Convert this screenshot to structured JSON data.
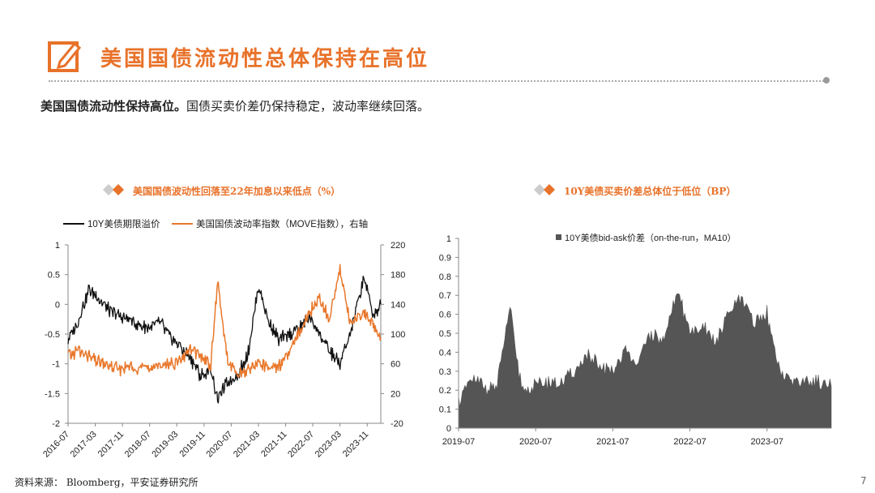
{
  "header": {
    "title": "美国国债流动性总体保持在高位",
    "icon": "edit-icon",
    "accent_color": "#e8722a"
  },
  "summary": {
    "bold": "美国国债流动性保持高位。",
    "text": "国债买卖价差仍保持稳定，波动率继续回落。"
  },
  "footer": {
    "source": "资料来源： Bloomberg，平安证券研究所",
    "page": "7"
  },
  "chart_data": [
    {
      "type": "line",
      "title": "美国国债波动性回落至22年加息以来低点（%）",
      "legend_position": "top-left",
      "x_tick_labels": [
        "2016-07",
        "2017-03",
        "2017-11",
        "2018-07",
        "2019-03",
        "2019-11",
        "2020-07",
        "2021-03",
        "2021-11",
        "2022-07",
        "2023-03",
        "2023-11"
      ],
      "x_range": [
        "2016-07",
        "2024-03"
      ],
      "y_left": {
        "range": [
          -2,
          1
        ],
        "ticks": [
          "1",
          "0.5",
          "0",
          "-0.5",
          "-1",
          "-1.5",
          "-2"
        ]
      },
      "y_right": {
        "range": [
          -20,
          220
        ],
        "ticks": [
          "220",
          "180",
          "140",
          "100",
          "60",
          "20",
          "-20"
        ]
      },
      "series": [
        {
          "name": "10Y美债期限溢价",
          "color": "#111111",
          "axis": "left",
          "x": [
            "2016-07",
            "2016-10",
            "2017-01",
            "2017-04",
            "2017-07",
            "2017-10",
            "2018-01",
            "2018-04",
            "2018-07",
            "2018-10",
            "2019-01",
            "2019-04",
            "2019-07",
            "2019-10",
            "2020-01",
            "2020-03",
            "2020-06",
            "2020-09",
            "2020-12",
            "2021-03",
            "2021-06",
            "2021-09",
            "2021-12",
            "2022-03",
            "2022-06",
            "2022-09",
            "2022-12",
            "2023-03",
            "2023-06",
            "2023-10",
            "2024-01",
            "2024-03"
          ],
          "values": [
            -0.6,
            -0.3,
            0.25,
            0.1,
            -0.1,
            -0.2,
            -0.25,
            -0.35,
            -0.4,
            -0.3,
            -0.55,
            -0.7,
            -0.9,
            -1.2,
            -1.1,
            -1.6,
            -1.3,
            -1.2,
            -0.8,
            0.3,
            -0.3,
            -0.6,
            -0.5,
            -0.4,
            -0.2,
            -0.5,
            -0.8,
            -1.0,
            -0.5,
            0.45,
            -0.2,
            0.0
          ]
        },
        {
          "name": "美国国债波动率指数（MOVE指数），右轴",
          "color": "#e8782c",
          "axis": "right",
          "x": [
            "2016-07",
            "2016-10",
            "2017-01",
            "2017-04",
            "2017-07",
            "2017-10",
            "2018-01",
            "2018-04",
            "2018-07",
            "2018-10",
            "2019-01",
            "2019-04",
            "2019-07",
            "2019-10",
            "2020-01",
            "2020-03",
            "2020-06",
            "2020-09",
            "2020-12",
            "2021-03",
            "2021-06",
            "2021-09",
            "2021-12",
            "2022-03",
            "2022-06",
            "2022-09",
            "2022-12",
            "2023-03",
            "2023-06",
            "2023-10",
            "2024-01",
            "2024-03"
          ],
          "values": [
            70,
            78,
            70,
            62,
            58,
            52,
            56,
            54,
            55,
            58,
            60,
            64,
            80,
            70,
            58,
            170,
            62,
            45,
            52,
            62,
            56,
            58,
            72,
            105,
            130,
            150,
            118,
            190,
            115,
            130,
            110,
            95
          ]
        }
      ]
    },
    {
      "type": "area",
      "title": "10Y美债买卖价差总体位于低位（BP）",
      "legend_position": "top-center",
      "x_tick_labels": [
        "2019-07",
        "2020-07",
        "2021-07",
        "2022-07",
        "2023-07"
      ],
      "x_range": [
        "2019-07",
        "2024-05"
      ],
      "y": {
        "range": [
          0,
          1
        ],
        "ticks": [
          "1",
          "0.9",
          "0.8",
          "0.7",
          "0.6",
          "0.5",
          "0.4",
          "0.3",
          "0.2",
          "0.1",
          "0"
        ]
      },
      "series": [
        {
          "name": "10Y美债bid-ask价差（on-the-run，MA10）",
          "color": "#555555",
          "x": [
            "2019-07",
            "2019-09",
            "2019-11",
            "2020-01",
            "2020-03",
            "2020-04",
            "2020-05",
            "2020-07",
            "2020-09",
            "2020-11",
            "2021-01",
            "2021-03",
            "2021-05",
            "2021-07",
            "2021-09",
            "2021-11",
            "2022-01",
            "2022-03",
            "2022-05",
            "2022-07",
            "2022-09",
            "2022-11",
            "2023-01",
            "2023-03",
            "2023-05",
            "2023-07",
            "2023-09",
            "2023-11",
            "2024-01",
            "2024-03",
            "2024-05"
          ],
          "values": [
            0.15,
            0.25,
            0.22,
            0.22,
            0.65,
            0.35,
            0.2,
            0.22,
            0.25,
            0.24,
            0.3,
            0.38,
            0.32,
            0.3,
            0.4,
            0.35,
            0.5,
            0.45,
            0.72,
            0.5,
            0.55,
            0.45,
            0.6,
            0.68,
            0.55,
            0.6,
            0.3,
            0.25,
            0.25,
            0.24,
            0.22
          ]
        }
      ]
    }
  ]
}
